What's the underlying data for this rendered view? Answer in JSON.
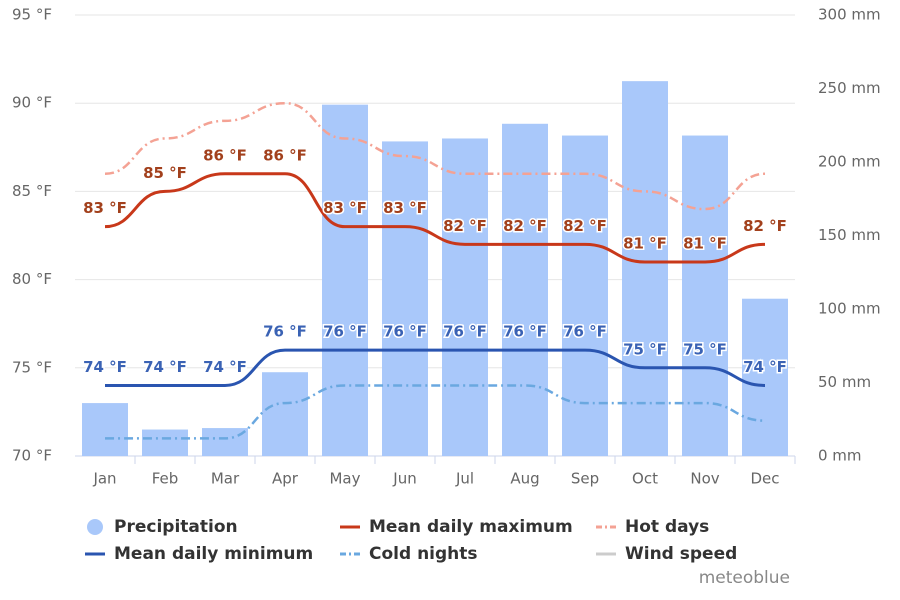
{
  "chart_data": {
    "type": "combo",
    "categories": [
      "Jan",
      "Feb",
      "Mar",
      "Apr",
      "May",
      "Jun",
      "Jul",
      "Aug",
      "Sep",
      "Oct",
      "Nov",
      "Dec"
    ],
    "ylim": [
      70,
      95
    ],
    "yticks": [
      {
        "value": 70,
        "label": "70 °F"
      },
      {
        "value": 75,
        "label": "75 °F"
      },
      {
        "value": 80,
        "label": "80 °F"
      },
      {
        "value": 85,
        "label": "85 °F"
      },
      {
        "value": 90,
        "label": "90 °F"
      },
      {
        "value": 95,
        "label": "95 °F"
      }
    ],
    "y2lim": [
      0,
      300
    ],
    "y2ticks": [
      {
        "value": 0,
        "label": "0 mm"
      },
      {
        "value": 50,
        "label": "50 mm"
      },
      {
        "value": 100,
        "label": "100 mm"
      },
      {
        "value": 150,
        "label": "150 mm"
      },
      {
        "value": 200,
        "label": "200 mm"
      },
      {
        "value": 250,
        "label": "250 mm"
      },
      {
        "value": 300,
        "label": "300 mm"
      }
    ],
    "grid": true,
    "series": [
      {
        "name": "Precipitation",
        "type": "bar",
        "axis": "y2",
        "color": "#a9c8fa",
        "values": [
          36,
          18,
          19,
          57,
          239,
          214,
          216,
          226,
          218,
          255,
          218,
          107
        ]
      },
      {
        "name": "Mean daily maximum",
        "type": "line",
        "color": "#c8381a",
        "label_color": "#a2401c",
        "dash": "solid",
        "values": [
          83,
          85,
          86,
          86,
          83,
          83,
          82,
          82,
          82,
          81,
          81,
          82
        ],
        "value_labels": [
          "83 °F",
          "85 °F",
          "86 °F",
          "86 °F",
          "83 °F",
          "83 °F",
          "82 °F",
          "82 °F",
          "82 °F",
          "81 °F",
          "81 °F",
          "82 °F"
        ]
      },
      {
        "name": "Hot days",
        "type": "line",
        "color": "#f4a294",
        "dash": "dashdot",
        "values": [
          86,
          88,
          89,
          90,
          88,
          87,
          86,
          86,
          86,
          85,
          84,
          86
        ]
      },
      {
        "name": "Mean daily minimum",
        "type": "line",
        "color": "#2a55b0",
        "label_color": "#3a62b4",
        "dash": "solid",
        "values": [
          74,
          74,
          74,
          76,
          76,
          76,
          76,
          76,
          76,
          75,
          75,
          74
        ],
        "value_labels": [
          "74 °F",
          "74 °F",
          "74 °F",
          "76 °F",
          "76 °F",
          "76 °F",
          "76 °F",
          "76 °F",
          "76 °F",
          "75 °F",
          "75 °F",
          "74 °F"
        ]
      },
      {
        "name": "Cold nights",
        "type": "line",
        "color": "#6aa8e0",
        "dash": "dashdot",
        "values": [
          71,
          71,
          71,
          73,
          74,
          74,
          74,
          74,
          73,
          73,
          73,
          72
        ]
      },
      {
        "name": "Wind speed",
        "type": "line",
        "color": "#cccccc",
        "visible": false,
        "values": [
          null,
          null,
          null,
          null,
          null,
          null,
          null,
          null,
          null,
          null,
          null,
          null
        ]
      }
    ],
    "credit": "meteoblue"
  }
}
